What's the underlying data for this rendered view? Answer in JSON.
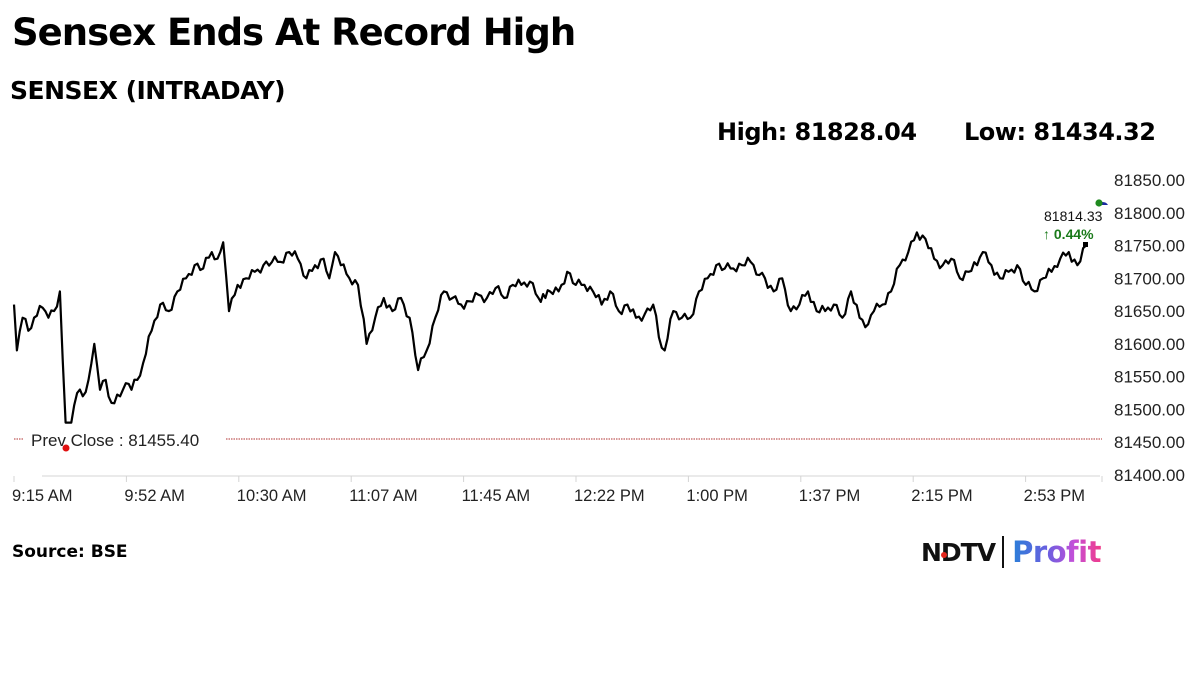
{
  "header": {
    "title": "Sensex Ends At Record High",
    "subtitle": "SENSEX (INTRADAY)",
    "high_label": "High: 81828.04",
    "low_label": "Low: 81434.32"
  },
  "chart": {
    "last_value": "81814.33",
    "last_change": "↑ 0.44%",
    "prev_close_label": "Prev Close : 81455.40",
    "y_ticks": [
      "81850.00",
      "81800.00",
      "81750.00",
      "81700.00",
      "81650.00",
      "81600.00",
      "81550.00",
      "81500.00",
      "81450.00",
      "81400.00"
    ],
    "x_ticks": [
      "9:15 AM",
      "9:52 AM",
      "10:30 AM",
      "11:07 AM",
      "11:45 AM",
      "12:22 PM",
      "1:00 PM",
      "1:37 PM",
      "2:15 PM",
      "2:53 PM"
    ],
    "colors": {
      "line": "#000000",
      "prev_close_line": "#b03030",
      "prev_close_marker": "#e01010",
      "change_up": "#1a7a1a",
      "high_marker": "#1f8a1f",
      "low_marker": "#1a2aa0",
      "axis": "#d0d0d0"
    }
  },
  "footer": {
    "source": "Source: BSE",
    "logo_left": "NDTV",
    "logo_right": "Profit"
  },
  "chart_data": {
    "type": "line",
    "title": "SENSEX (INTRADAY)",
    "xlabel": "",
    "ylabel": "",
    "ylim": [
      81400,
      81850
    ],
    "grid": false,
    "legend": "none",
    "x_tick_labels": [
      "9:15 AM",
      "9:52 AM",
      "10:30 AM",
      "11:07 AM",
      "11:45 AM",
      "12:22 PM",
      "1:00 PM",
      "1:37 PM",
      "2:15 PM",
      "2:53 PM"
    ],
    "y_tick_labels": [
      "81400.00",
      "81450.00",
      "81500.00",
      "81550.00",
      "81600.00",
      "81650.00",
      "81700.00",
      "81750.00",
      "81800.00",
      "81850.00"
    ],
    "annotations": {
      "high": 81828.04,
      "low": 81434.32,
      "prev_close": 81455.4,
      "last": 81814.33,
      "change_pct": 0.44
    },
    "series": [
      {
        "name": "SENSEX",
        "x": [
          "9:15",
          "9:16",
          "9:18",
          "9:20",
          "9:22",
          "9:25",
          "9:27",
          "9:29",
          "9:31",
          "9:33",
          "9:35",
          "9:37",
          "9:39",
          "9:41",
          "9:43",
          "9:45",
          "9:47",
          "9:49",
          "9:52",
          "9:54",
          "9:56",
          "9:58",
          "10:00",
          "10:03",
          "10:06",
          "10:09",
          "10:12",
          "10:15",
          "10:18",
          "10:21",
          "10:24",
          "10:26",
          "10:28",
          "10:30",
          "10:33",
          "10:36",
          "10:39",
          "10:42",
          "10:45",
          "10:48",
          "10:51",
          "10:54",
          "10:57",
          "11:00",
          "11:03",
          "11:05",
          "11:07",
          "11:09",
          "11:12",
          "11:15",
          "11:18",
          "11:21",
          "11:24",
          "11:27",
          "11:30",
          "11:33",
          "11:36",
          "11:39",
          "11:42",
          "11:45",
          "11:48",
          "11:51",
          "11:54",
          "11:57",
          "12:00",
          "12:03",
          "12:06",
          "12:09",
          "12:12",
          "12:15",
          "12:18",
          "12:22",
          "12:25",
          "12:28",
          "12:31",
          "12:34",
          "12:37",
          "12:40",
          "12:43",
          "12:46",
          "12:49",
          "12:52",
          "12:55",
          "12:58",
          "1:00",
          "1:02",
          "1:05",
          "1:08",
          "1:11",
          "1:14",
          "1:17",
          "1:20",
          "1:23",
          "1:26",
          "1:29",
          "1:32",
          "1:35",
          "1:37",
          "1:40",
          "1:43",
          "1:46",
          "1:49",
          "1:52",
          "1:55",
          "1:58",
          "2:01",
          "2:04",
          "2:07",
          "2:10",
          "2:13",
          "2:15",
          "2:18",
          "2:21",
          "2:24",
          "2:27",
          "2:30",
          "2:33",
          "2:36",
          "2:39",
          "2:42",
          "2:45",
          "2:48",
          "2:51",
          "2:53",
          "2:56",
          "2:59",
          "3:02",
          "3:05",
          "3:08",
          "3:11",
          "3:14",
          "3:17",
          "3:20",
          "3:23",
          "3:26",
          "3:29"
        ],
        "values": [
          81660,
          81590,
          81640,
          81620,
          81640,
          81655,
          81640,
          81650,
          81680,
          81480,
          81480,
          81525,
          81520,
          81545,
          81600,
          81530,
          81545,
          81510,
          81520,
          81540,
          81530,
          81545,
          81570,
          81620,
          81660,
          81650,
          81680,
          81700,
          81720,
          81715,
          81740,
          81730,
          81755,
          81650,
          81690,
          81700,
          81710,
          81720,
          81725,
          81725,
          81740,
          81730,
          81700,
          81720,
          81730,
          81700,
          81740,
          81720,
          81700,
          81690,
          81600,
          81640,
          81670,
          81650,
          81670,
          81640,
          81560,
          81590,
          81640,
          81680,
          81670,
          81660,
          81665,
          81675,
          81670,
          81685,
          81670,
          81690,
          81690,
          81695,
          81670,
          81680,
          81680,
          81710,
          81690,
          81690,
          81680,
          81660,
          81680,
          81650,
          81660,
          81640,
          81645,
          81660,
          81610,
          81590,
          81650,
          81640,
          81640,
          81680,
          81700,
          81720,
          81715,
          81715,
          81720,
          81725,
          81705,
          81700,
          81680,
          81700,
          81650,
          81660,
          81680,
          81650,
          81650,
          81660,
          81640,
          81680,
          81640,
          81630,
          81650,
          81660,
          81680,
          81720,
          81740,
          81770,
          81760,
          81730,
          81720,
          81730,
          81700,
          81710,
          81720,
          81740,
          81720,
          81700,
          81710,
          81720,
          81690,
          81680,
          81700,
          81710,
          81730,
          81740,
          81720,
          81750
        ]
      }
    ]
  }
}
